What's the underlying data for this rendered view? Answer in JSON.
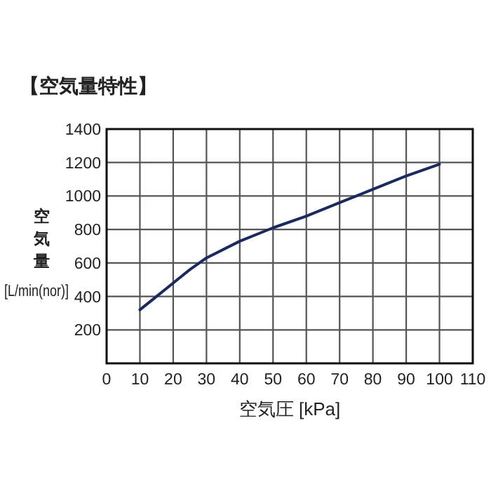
{
  "chart_data": {
    "type": "line",
    "title": "【空気量特性】",
    "xlabel": "空気圧 [kPa]",
    "ylabel": "空気量 [L/min(nor)]",
    "x": [
      10,
      15,
      20,
      25,
      30,
      40,
      50,
      60,
      70,
      80,
      90,
      100
    ],
    "series": [
      {
        "color": "#1a2a5e",
        "values": [
          320,
          400,
          480,
          560,
          630,
          730,
          810,
          880,
          960,
          1040,
          1120,
          1190
        ]
      }
    ],
    "xlim": [
      0,
      110
    ],
    "ylim": [
      0,
      1400
    ],
    "xticks": [
      0,
      10,
      20,
      30,
      40,
      50,
      60,
      70,
      80,
      90,
      100,
      110
    ],
    "yticks": [
      200,
      400,
      600,
      800,
      1000,
      1200,
      1400
    ],
    "grid": true,
    "marker": "none",
    "line_style": "solid"
  }
}
